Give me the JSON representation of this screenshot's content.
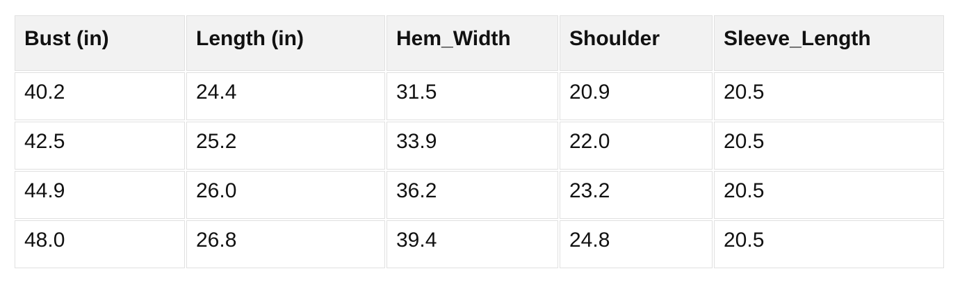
{
  "table": {
    "columns": [
      "Bust (in)",
      "Length (in)",
      "Hem_Width",
      "Shoulder",
      "Sleeve_Length"
    ],
    "rows": [
      [
        "40.2",
        "24.4",
        "31.5",
        "20.9",
        "20.5"
      ],
      [
        "42.5",
        "25.2",
        "33.9",
        "22.0",
        "20.5"
      ],
      [
        "44.9",
        "26.0",
        "36.2",
        "23.2",
        "20.5"
      ],
      [
        "48.0",
        "26.8",
        "39.4",
        "24.8",
        "20.5"
      ]
    ]
  },
  "colors": {
    "header_bg": "#f2f2f2",
    "cell_bg": "#ffffff",
    "border": "#e0e0e0",
    "text": "#111111"
  }
}
